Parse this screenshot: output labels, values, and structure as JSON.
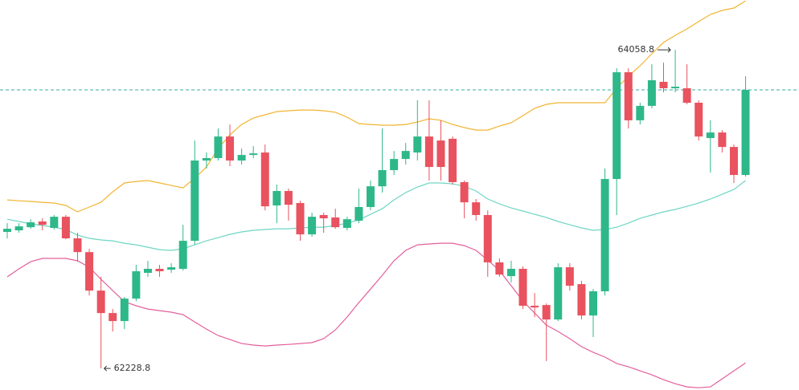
{
  "chart_data": {
    "type": "candlestick",
    "up_color": "#2eb88a",
    "down_color": "#e9525f",
    "ylim": [
      62105,
      64345
    ],
    "open": [
      63013,
      63022,
      63040,
      63073,
      63036,
      63100,
      62976,
      62897,
      62676,
      62547,
      62501,
      62630,
      62778,
      62801,
      62796,
      62801,
      62962,
      63423,
      63437,
      63561,
      63423,
      63455,
      63469,
      63165,
      63248,
      63179,
      62999,
      63110,
      63096,
      63036,
      63077,
      63156,
      63275,
      63368,
      63432,
      63469,
      63561,
      63538,
      63548,
      63299,
      63183,
      63110,
      62838,
      62759,
      62801,
      62589,
      62593,
      62510,
      62810,
      62713,
      62533,
      62672,
      63317,
      63930,
      63654,
      63737,
      63875,
      63838,
      63838,
      63755,
      63552,
      63584,
      63501,
      63340
    ],
    "high": [
      63063,
      63063,
      63086,
      63091,
      63110,
      63110,
      63008,
      62916,
      62755,
      62570,
      62639,
      62824,
      62847,
      62824,
      62833,
      63054,
      63538,
      63469,
      63607,
      63630,
      63492,
      63506,
      63515,
      63285,
      63262,
      63192,
      63123,
      63123,
      63146,
      63100,
      63262,
      63308,
      63607,
      63478,
      63524,
      63769,
      63769,
      63654,
      63561,
      63308,
      63202,
      63137,
      62861,
      62847,
      62815,
      62662,
      62602,
      62833,
      62833,
      62732,
      62685,
      63377,
      63953,
      63953,
      63755,
      63976,
      63985,
      64058.8,
      63976,
      63769,
      63654,
      63598,
      63515,
      63907
    ],
    "low": [
      62976,
      63008,
      63031,
      63022,
      63027,
      62971,
      62842,
      62648,
      62228.8,
      62441,
      62455,
      62616,
      62755,
      62755,
      62778,
      62791,
      62939,
      63377,
      63423,
      63391,
      63400,
      63437,
      63137,
      63063,
      63077,
      62962,
      62985,
      63008,
      63031,
      63022,
      63063,
      63137,
      63239,
      63340,
      63400,
      63423,
      63308,
      63308,
      63285,
      63091,
      63077,
      62755,
      62755,
      62722,
      62570,
      62524,
      62271,
      62501,
      62676,
      62510,
      62409,
      62648,
      63110,
      63607,
      63630,
      63723,
      63815,
      63815,
      63746,
      63538,
      63354,
      63469,
      63294,
      63331
    ],
    "close": [
      63031,
      63045,
      63068,
      63054,
      63100,
      62976,
      62897,
      62676,
      62547,
      62501,
      62630,
      62787,
      62801,
      62787,
      62810,
      62962,
      63423,
      63437,
      63561,
      63423,
      63455,
      63464,
      63160,
      63248,
      63169,
      62999,
      63100,
      63091,
      63040,
      63086,
      63156,
      63275,
      63368,
      63432,
      63478,
      63561,
      63386,
      63386,
      63299,
      63183,
      63110,
      62838,
      62768,
      62801,
      62589,
      62579,
      62510,
      62810,
      62704,
      62533,
      62672,
      63317,
      63930,
      63654,
      63737,
      63884,
      63838,
      63847,
      63755,
      63561,
      63584,
      63501,
      63340,
      63829
    ],
    "bands": [
      {
        "color": "#f2b431",
        "values": [
          63197,
          63192,
          63188,
          63183,
          63179,
          63165,
          63128,
          63156,
          63183,
          63243,
          63294,
          63303,
          63308,
          63294,
          63280,
          63266,
          63322,
          63386,
          63492,
          63570,
          63630,
          63667,
          63686,
          63704,
          63709,
          63713,
          63713,
          63709,
          63700,
          63672,
          63635,
          63630,
          63626,
          63626,
          63630,
          63644,
          63663,
          63654,
          63630,
          63612,
          63598,
          63598,
          63621,
          63640,
          63681,
          63723,
          63746,
          63755,
          63755,
          63755,
          63755,
          63755,
          63838,
          63907,
          63967,
          64036,
          64101,
          64142,
          64179,
          64221,
          64262,
          64285,
          64299,
          64340
        ]
      },
      {
        "color": "#6fd6c4",
        "values": [
          63086,
          63073,
          63059,
          63050,
          63040,
          63027,
          62994,
          62976,
          62967,
          62962,
          62948,
          62939,
          62925,
          62911,
          62907,
          62916,
          62939,
          62962,
          62980,
          62999,
          63013,
          63022,
          63027,
          63031,
          63031,
          63036,
          63040,
          63040,
          63050,
          63063,
          63082,
          63114,
          63146,
          63197,
          63239,
          63271,
          63294,
          63294,
          63289,
          63275,
          63248,
          63202,
          63174,
          63151,
          63133,
          63114,
          63096,
          63073,
          63054,
          63036,
          63022,
          63027,
          63040,
          63063,
          63091,
          63110,
          63128,
          63142,
          63160,
          63179,
          63202,
          63229,
          63257,
          63308
        ]
      },
      {
        "color": "#e35f9c",
        "values": [
          62755,
          62801,
          62842,
          62861,
          62861,
          62861,
          62847,
          62810,
          62741,
          62676,
          62612,
          62589,
          62570,
          62561,
          62552,
          62538,
          62496,
          62455,
          62418,
          62395,
          62372,
          62363,
          62358,
          62363,
          62367,
          62372,
          62377,
          62400,
          62450,
          62524,
          62607,
          62685,
          62764,
          62847,
          62907,
          62939,
          62944,
          62948,
          62948,
          62934,
          62907,
          62851,
          62791,
          62704,
          62616,
          62547,
          62478,
          62441,
          62400,
          62354,
          62321,
          62294,
          62257,
          62238,
          62215,
          62192,
          62164,
          62141,
          62123,
          62118,
          62123,
          62169,
          62215,
          62261
        ]
      }
    ],
    "last_price_line_color": "#3aa9a4"
  }
}
